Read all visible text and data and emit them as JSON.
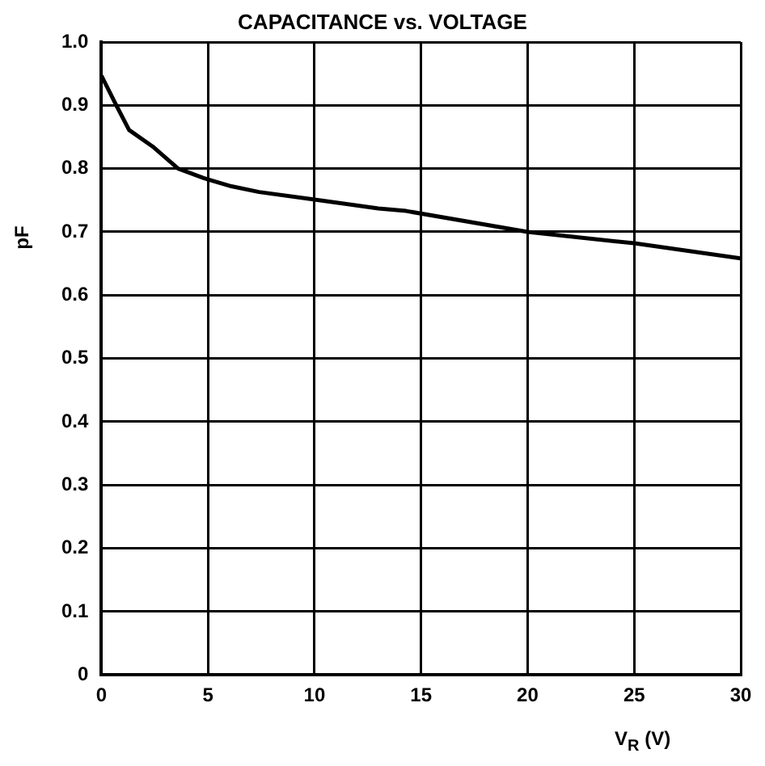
{
  "chart_data": {
    "type": "line",
    "title": "CAPACITANCE vs. VOLTAGE",
    "xlabel": "V$_{R}$ (V)",
    "ylabel": "pF",
    "x": [
      0,
      0.7,
      1.3,
      2.4,
      3.6,
      4.8,
      6.1,
      7.4,
      9.8,
      13,
      14.3,
      20,
      25,
      30
    ],
    "series": [
      {
        "color": "#000000",
        "values": [
          0.947,
          0.9,
          0.861,
          0.835,
          0.8,
          0.785,
          0.772,
          0.763,
          0.752,
          0.737,
          0.733,
          0.7,
          0.682,
          0.658
        ]
      }
    ],
    "xlim": [
      0,
      30
    ],
    "xticks": [
      0,
      5,
      10,
      15,
      20,
      25,
      30
    ],
    "ylim": [
      0,
      1
    ],
    "yticks": [
      0,
      0.1,
      0.2,
      0.3,
      0.4,
      0.5,
      0.6,
      0.7,
      0.8,
      0.9,
      {
        "value": 1,
        "label": "1.0"
      }
    ],
    "grid": true,
    "legend": false,
    "marker": "none",
    "line_style": "solid"
  }
}
